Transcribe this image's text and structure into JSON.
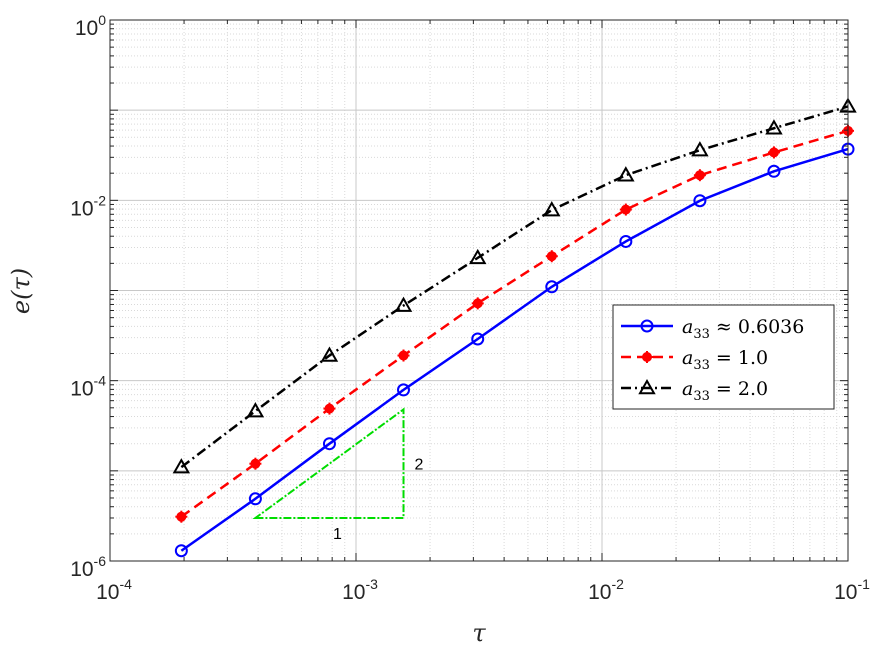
{
  "chart_data": {
    "type": "line",
    "title": "",
    "xlabel": "τ",
    "ylabel": "e(τ)",
    "xscale": "log",
    "yscale": "log",
    "xlim": [
      0.0001,
      0.1
    ],
    "ylim": [
      1e-06,
      1
    ],
    "grid": true,
    "legend_position": "right",
    "xticks": [
      {
        "base": "10",
        "exp": "-4",
        "value": 0.0001
      },
      {
        "base": "10",
        "exp": "-3",
        "value": 0.001
      },
      {
        "base": "10",
        "exp": "-2",
        "value": 0.01
      },
      {
        "base": "10",
        "exp": "-1",
        "value": 0.1
      }
    ],
    "yticks": [
      {
        "base": "10",
        "exp": "-6",
        "value": 1e-06
      },
      {
        "base": "10",
        "exp": "-4",
        "value": 0.0001
      },
      {
        "base": "10",
        "exp": "-2",
        "value": 0.01
      },
      {
        "base": "10",
        "exp": "0",
        "value": 1
      }
    ],
    "x": [
      0.000195,
      0.00039,
      0.00078,
      0.00156,
      0.003125,
      0.00625,
      0.0125,
      0.025,
      0.05,
      0.1
    ],
    "series": [
      {
        "name": "a_33 ≈ 0.6036",
        "legend_main": "a",
        "legend_sub": "33",
        "legend_rest": " ≈ 0.6036",
        "color": "#0000ff",
        "dash": "solid",
        "marker": "circle",
        "values": [
          1.3e-06,
          4.9e-06,
          2e-05,
          7.9e-05,
          0.00029,
          0.0011,
          0.0035,
          0.0099,
          0.021,
          0.037
        ]
      },
      {
        "name": "a_33 = 1.0",
        "legend_main": "a",
        "legend_sub": "33",
        "legend_rest": " = 1.0",
        "color": "#ff0000",
        "dash": "dashed",
        "marker": "star",
        "values": [
          3.1e-06,
          1.2e-05,
          4.9e-05,
          0.00019,
          0.00072,
          0.0024,
          0.0079,
          0.019,
          0.034,
          0.059
        ]
      },
      {
        "name": "a_33 = 2.0",
        "legend_main": "a",
        "legend_sub": "33",
        "legend_rest": " = 2.0",
        "color": "#000000",
        "dash": "dashdot",
        "marker": "triangle",
        "values": [
          1.1e-05,
          4.6e-05,
          0.00019,
          0.00068,
          0.0023,
          0.0078,
          0.019,
          0.036,
          0.063,
          0.11
        ]
      }
    ],
    "slope_triangle": {
      "color": "#00dd00",
      "x_start": 0.00039,
      "x_end": 0.00156,
      "y_bottom": 3e-06,
      "y_top": 4.8e-05,
      "run_label": "1",
      "rise_label": "2"
    }
  }
}
